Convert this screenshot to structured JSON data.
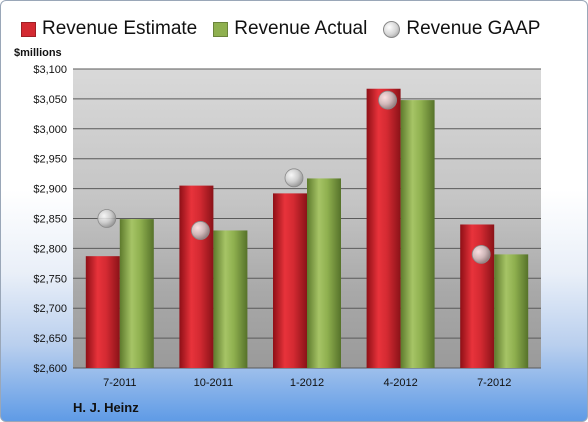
{
  "chart_data": {
    "type": "bar",
    "unit_label": "$millions",
    "company": "H. J. Heinz",
    "categories": [
      "7-2011",
      "10-2011",
      "1-2012",
      "4-2012",
      "7-2012"
    ],
    "series": [
      {
        "name": "Revenue Estimate",
        "kind": "bar",
        "color": "#d42a32",
        "values": [
          2787,
          2905,
          2892,
          3067,
          2840
        ]
      },
      {
        "name": "Revenue Actual",
        "kind": "bar",
        "color": "#8fb04f",
        "values": [
          2849,
          2830,
          2917,
          3048,
          2790
        ]
      },
      {
        "name": "Revenue GAAP",
        "kind": "marker",
        "color": "#c8c8c8",
        "values": [
          2850,
          2830,
          2918,
          3048,
          2790
        ]
      }
    ],
    "ylim": [
      2600,
      3100
    ],
    "y_ticks": [
      "$2,600",
      "$2,650",
      "$2,700",
      "$2,750",
      "$2,800",
      "$2,850",
      "$2,900",
      "$2,950",
      "$3,000",
      "$3,050",
      "$3,100"
    ],
    "grid": true,
    "legend_position": "top"
  }
}
